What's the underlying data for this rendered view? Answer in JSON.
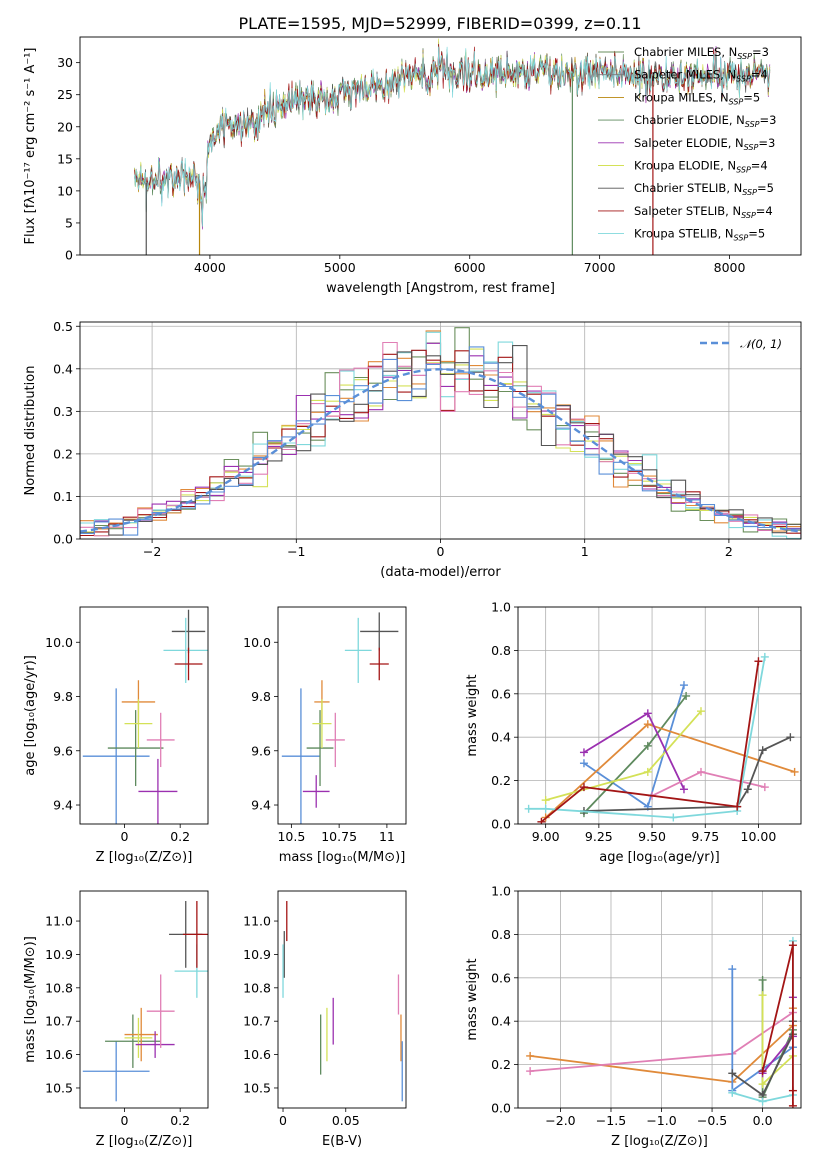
{
  "figure": {
    "title": "PLATE=1595, MJD=52999, FIBERID=0399, z=0.11"
  },
  "chart_data": [
    {
      "id": "spectrum",
      "type": "line",
      "xlabel": "wavelength [Angstrom, rest frame]",
      "ylabel": "Flux [fλ10⁻¹⁷ erg cm⁻² s⁻¹ A⁻¹]",
      "xlim": [
        3000,
        8550
      ],
      "ylim": [
        0,
        34
      ],
      "xticks": [
        4000,
        5000,
        6000,
        7000,
        8000
      ],
      "yticks": [
        0,
        5,
        10,
        15,
        20,
        25,
        30
      ],
      "grid": false,
      "legend_position": "right",
      "continuum_anchors": {
        "wavelength": [
          3420,
          3600,
          3700,
          3800,
          3900,
          3950,
          4000,
          4100,
          4300,
          4500,
          4700,
          5000,
          5300,
          5600,
          5900,
          6200,
          6500,
          6800,
          7100,
          7400,
          7700,
          8000,
          8300
        ],
        "flux": [
          11,
          11.5,
          12,
          12.5,
          12,
          10,
          18,
          20,
          20,
          23,
          24,
          25,
          27,
          28,
          28.5,
          28.5,
          28.5,
          28.5,
          28.5,
          27.5,
          28,
          28,
          28.5
        ]
      },
      "series": [
        {
          "name": "Chabrier MILES, N_SSP=3",
          "label_main": "Chabrier MILES, N",
          "label_sub": "SSP",
          "label_tail": "=3",
          "color": "#6a8f5c"
        },
        {
          "name": "Salpeter MILES, N_SSP=4",
          "label_main": "Salpeter MILES, N",
          "label_sub": "SSP",
          "label_tail": "=4",
          "color": "#7a7a7a"
        },
        {
          "name": "Kroupa MILES, N_SSP=5",
          "label_main": "Kroupa MILES, N",
          "label_sub": "SSP",
          "label_tail": "=5",
          "color": "#b8860b"
        },
        {
          "name": "Chabrier ELODIE, N_SSP=3",
          "label_main": "Chabrier ELODIE, N",
          "label_sub": "SSP",
          "label_tail": "=3",
          "color": "#5e8a5e"
        },
        {
          "name": "Salpeter ELODIE, N_SSP=3",
          "label_main": "Salpeter ELODIE, N",
          "label_sub": "SSP",
          "label_tail": "=3",
          "color": "#9b30b0"
        },
        {
          "name": "Kroupa ELODIE, N_SSP=4",
          "label_main": "Kroupa ELODIE, N",
          "label_sub": "SSP",
          "label_tail": "=4",
          "color": "#d4e157"
        },
        {
          "name": "Chabrier STELIB, N_SSP=5",
          "label_main": "Chabrier STELIB, N",
          "label_sub": "SSP",
          "label_tail": "=5",
          "color": "#555555"
        },
        {
          "name": "Salpeter STELIB, N_SSP=4",
          "label_main": "Salpeter STELIB, N",
          "label_sub": "SSP",
          "label_tail": "=4",
          "color": "#a31515"
        },
        {
          "name": "Kroupa STELIB, N_SSP=5",
          "label_main": "Kroupa STELIB, N",
          "label_sub": "SSP",
          "label_tail": "=5",
          "color": "#7fd8dc"
        }
      ]
    },
    {
      "id": "residuals",
      "type": "step-histogram",
      "xlabel": "(data-model)/error",
      "ylabel": "Normed distribution",
      "xlim": [
        -2.5,
        2.5
      ],
      "ylim": [
        0,
        0.51
      ],
      "xticks": [
        -2,
        -1,
        0,
        1,
        2
      ],
      "yticks": [
        0.0,
        0.1,
        0.2,
        0.3,
        0.4,
        0.5
      ],
      "grid": true,
      "legend_position": "top-right",
      "reference_curve": {
        "name": "N(0,1)",
        "label": "𝒩(0, 1)",
        "color": "#5a8fd8",
        "style": "dashed"
      },
      "series_colors": [
        "#6a8f5c",
        "#e08a3a",
        "#d4e157",
        "#9b30b0",
        "#7fd8dc",
        "#a31515",
        "#e07fb5",
        "#555555",
        "#5a8fd8"
      ]
    },
    {
      "id": "age_vs_Z",
      "type": "errorbar",
      "xlabel": "Z [log₁₀(Z/Z⊙)]",
      "ylabel": "age  [log₁₀(age/yr)]",
      "xlim": [
        -0.16,
        0.3
      ],
      "ylim": [
        9.33,
        10.13
      ],
      "xticks": [
        0.0,
        0.2
      ],
      "yticks": [
        9.4,
        9.6,
        9.8,
        10.0
      ],
      "points": [
        {
          "x": -0.03,
          "y": 9.58,
          "xerr": 0.12,
          "yerr": 0.25,
          "color": "#5a8fd8"
        },
        {
          "x": 0.04,
          "y": 9.61,
          "xerr": 0.1,
          "yerr": 0.14,
          "color": "#5e8a5e"
        },
        {
          "x": 0.05,
          "y": 9.78,
          "xerr": 0.06,
          "yerr": 0.08,
          "color": "#e08a3a"
        },
        {
          "x": 0.05,
          "y": 9.7,
          "xerr": 0.05,
          "yerr": 0.09,
          "color": "#d4e157"
        },
        {
          "x": 0.12,
          "y": 9.45,
          "xerr": 0.07,
          "yerr": 0.12,
          "color": "#9b30b0"
        },
        {
          "x": 0.13,
          "y": 9.64,
          "xerr": 0.05,
          "yerr": 0.1,
          "color": "#e07fb5"
        },
        {
          "x": 0.23,
          "y": 10.04,
          "xerr": 0.06,
          "yerr": 0.08,
          "color": "#555555"
        },
        {
          "x": 0.22,
          "y": 9.97,
          "xerr": 0.08,
          "yerr": 0.12,
          "color": "#7fd8dc"
        },
        {
          "x": 0.23,
          "y": 9.92,
          "xerr": 0.05,
          "yerr": 0.06,
          "color": "#a31515"
        }
      ]
    },
    {
      "id": "age_vs_mass",
      "type": "errorbar",
      "xlabel": "mass [log₁₀(M/M⊙)]",
      "ylabel": "",
      "xlim": [
        10.43,
        11.1
      ],
      "ylim": [
        9.33,
        10.13
      ],
      "xticks": [
        10.5,
        10.75,
        11.0
      ],
      "yticks": [
        9.4,
        9.6,
        9.8,
        10.0
      ],
      "points": [
        {
          "x": 10.55,
          "y": 9.58,
          "xerr": 0.1,
          "yerr": 0.25,
          "color": "#5a8fd8"
        },
        {
          "x": 10.65,
          "y": 9.61,
          "xerr": 0.07,
          "yerr": 0.14,
          "color": "#5e8a5e"
        },
        {
          "x": 10.66,
          "y": 9.78,
          "xerr": 0.04,
          "yerr": 0.08,
          "color": "#e08a3a"
        },
        {
          "x": 10.66,
          "y": 9.7,
          "xerr": 0.05,
          "yerr": 0.09,
          "color": "#d4e157"
        },
        {
          "x": 10.63,
          "y": 9.45,
          "xerr": 0.07,
          "yerr": 0.06,
          "color": "#9b30b0"
        },
        {
          "x": 10.73,
          "y": 9.64,
          "xerr": 0.05,
          "yerr": 0.1,
          "color": "#e07fb5"
        },
        {
          "x": 10.96,
          "y": 10.04,
          "xerr": 0.1,
          "yerr": 0.07,
          "color": "#555555"
        },
        {
          "x": 10.85,
          "y": 9.97,
          "xerr": 0.07,
          "yerr": 0.12,
          "color": "#7fd8dc"
        },
        {
          "x": 10.96,
          "y": 9.92,
          "xerr": 0.05,
          "yerr": 0.06,
          "color": "#a31515"
        }
      ]
    },
    {
      "id": "mass_weight_vs_age",
      "type": "line",
      "xlabel": "age  [log₁₀(age/yr)]",
      "ylabel": "mass weight",
      "xlim": [
        8.87,
        10.2
      ],
      "ylim": [
        0,
        1.0
      ],
      "xticks": [
        9.0,
        9.25,
        9.5,
        9.75,
        10.0
      ],
      "yticks": [
        0.0,
        0.2,
        0.4,
        0.6,
        0.8,
        1.0
      ],
      "grid": true,
      "series": [
        {
          "color": "#5a8fd8",
          "x": [
            9.18,
            9.48,
            9.65
          ],
          "y": [
            0.28,
            0.08,
            0.64
          ]
        },
        {
          "color": "#5e8a5e",
          "x": [
            9.18,
            9.48,
            9.66
          ],
          "y": [
            0.05,
            0.36,
            0.59
          ]
        },
        {
          "color": "#e08a3a",
          "x": [
            9.0,
            9.48,
            10.17
          ],
          "y": [
            0.03,
            0.46,
            0.24
          ]
        },
        {
          "color": "#d4e157",
          "x": [
            9.0,
            9.48,
            9.73
          ],
          "y": [
            0.11,
            0.24,
            0.52
          ]
        },
        {
          "color": "#9b30b0",
          "x": [
            9.18,
            9.48,
            9.65
          ],
          "y": [
            0.33,
            0.51,
            0.16
          ]
        },
        {
          "color": "#e07fb5",
          "x": [
            9.5,
            9.73,
            10.03
          ],
          "y": [
            0.13,
            0.24,
            0.17
          ]
        },
        {
          "color": "#555555",
          "x": [
            9.18,
            9.9,
            9.95,
            10.02,
            10.15
          ],
          "y": [
            0.06,
            0.08,
            0.16,
            0.34,
            0.4
          ]
        },
        {
          "color": "#7fd8dc",
          "x": [
            8.92,
            9.0,
            9.6,
            9.9,
            10.03
          ],
          "y": [
            0.07,
            0.07,
            0.03,
            0.06,
            0.77
          ]
        },
        {
          "color": "#a31515",
          "x": [
            8.98,
            9.18,
            9.9,
            10.0
          ],
          "y": [
            0.01,
            0.17,
            0.08,
            0.75
          ]
        }
      ]
    },
    {
      "id": "mass_vs_Z",
      "type": "errorbar",
      "xlabel": "Z [log₁₀(Z/Z⊙)]",
      "ylabel": "mass [log₁₀(M/M⊙)]",
      "xlim": [
        -0.16,
        0.3
      ],
      "ylim": [
        10.44,
        11.09
      ],
      "xticks": [
        0.0,
        0.2
      ],
      "yticks": [
        10.5,
        10.6,
        10.7,
        10.8,
        10.9,
        11.0
      ],
      "points": [
        {
          "x": -0.03,
          "y": 10.55,
          "xerr": 0.12,
          "yerr": 0.09,
          "color": "#5a8fd8"
        },
        {
          "x": 0.03,
          "y": 10.64,
          "xerr": 0.1,
          "yerr": 0.08,
          "color": "#5e8a5e"
        },
        {
          "x": 0.06,
          "y": 10.66,
          "xerr": 0.06,
          "yerr": 0.08,
          "color": "#e08a3a"
        },
        {
          "x": 0.05,
          "y": 10.65,
          "xerr": 0.05,
          "yerr": 0.06,
          "color": "#d4e157"
        },
        {
          "x": 0.11,
          "y": 10.63,
          "xerr": 0.07,
          "yerr": 0.04,
          "color": "#9b30b0"
        },
        {
          "x": 0.13,
          "y": 10.73,
          "xerr": 0.05,
          "yerr": 0.11,
          "color": "#e07fb5"
        },
        {
          "x": 0.22,
          "y": 10.96,
          "xerr": 0.06,
          "yerr": 0.1,
          "color": "#555555"
        },
        {
          "x": 0.26,
          "y": 10.85,
          "xerr": 0.08,
          "yerr": 0.08,
          "color": "#7fd8dc"
        },
        {
          "x": 0.26,
          "y": 10.96,
          "xerr": 0.05,
          "yerr": 0.1,
          "color": "#a31515"
        }
      ]
    },
    {
      "id": "mass_vs_ebv",
      "type": "errorbar",
      "xlabel": "E(B-V)",
      "ylabel": "",
      "xlim": [
        -0.004,
        0.098
      ],
      "ylim": [
        10.44,
        11.09
      ],
      "xticks": [
        0.0,
        0.05
      ],
      "yticks": [
        10.5,
        10.6,
        10.7,
        10.8,
        10.9,
        11.0
      ],
      "points": [
        {
          "x": 0.003,
          "y": 11.0,
          "xerr": 0,
          "yerr": 0.06,
          "color": "#a31515"
        },
        {
          "x": 0.001,
          "y": 10.9,
          "xerr": 0,
          "yerr": 0.07,
          "color": "#555555"
        },
        {
          "x": 0.0,
          "y": 10.85,
          "xerr": 0,
          "yerr": 0.08,
          "color": "#7fd8dc"
        },
        {
          "x": 0.03,
          "y": 10.63,
          "xerr": 0,
          "yerr": 0.09,
          "color": "#5e8a5e"
        },
        {
          "x": 0.035,
          "y": 10.66,
          "xerr": 0,
          "yerr": 0.08,
          "color": "#d4e157"
        },
        {
          "x": 0.04,
          "y": 10.7,
          "xerr": 0,
          "yerr": 0.07,
          "color": "#9b30b0"
        },
        {
          "x": 0.092,
          "y": 10.78,
          "xerr": 0,
          "yerr": 0.06,
          "color": "#e07fb5"
        },
        {
          "x": 0.094,
          "y": 10.65,
          "xerr": 0,
          "yerr": 0.07,
          "color": "#e08a3a"
        },
        {
          "x": 0.095,
          "y": 10.55,
          "xerr": 0,
          "yerr": 0.09,
          "color": "#5a8fd8"
        }
      ]
    },
    {
      "id": "mass_weight_vs_Z",
      "type": "line",
      "xlabel": "Z [log₁₀(Z/Z⊙)]",
      "ylabel": "mass weight",
      "xlim": [
        -2.42,
        0.38
      ],
      "ylim": [
        0,
        1.0
      ],
      "xticks": [
        -2.0,
        -1.5,
        -1.0,
        -0.5,
        0.0
      ],
      "yticks": [
        0.0,
        0.2,
        0.4,
        0.6,
        0.8,
        1.0
      ],
      "grid": true,
      "series": [
        {
          "color": "#e08a3a",
          "x": [
            -2.3,
            -0.3,
            0.3,
            0.3
          ],
          "y": [
            0.24,
            0.12,
            0.38,
            0.46
          ]
        },
        {
          "color": "#e07fb5",
          "x": [
            -2.3,
            -0.3,
            0.3
          ],
          "y": [
            0.17,
            0.25,
            0.44
          ]
        },
        {
          "color": "#5a8fd8",
          "x": [
            -0.3,
            -0.3,
            0.3
          ],
          "y": [
            0.64,
            0.08,
            0.28
          ]
        },
        {
          "color": "#5e8a5e",
          "x": [
            0.0,
            0.0,
            0.3
          ],
          "y": [
            0.59,
            0.05,
            0.36
          ]
        },
        {
          "color": "#d4e157",
          "x": [
            0.0,
            0.0,
            0.3
          ],
          "y": [
            0.52,
            0.11,
            0.24
          ]
        },
        {
          "color": "#9b30b0",
          "x": [
            0.0,
            0.3,
            0.3
          ],
          "y": [
            0.16,
            0.33,
            0.51
          ]
        },
        {
          "color": "#555555",
          "x": [
            -0.3,
            0.0,
            0.3,
            0.3
          ],
          "y": [
            0.16,
            0.06,
            0.34,
            0.4
          ]
        },
        {
          "color": "#7fd8dc",
          "x": [
            -0.3,
            0.0,
            0.3,
            0.3
          ],
          "y": [
            0.07,
            0.03,
            0.06,
            0.77
          ]
        },
        {
          "color": "#a31515",
          "x": [
            0.0,
            0.3,
            0.3,
            0.3
          ],
          "y": [
            0.17,
            0.75,
            0.08,
            0.01
          ]
        }
      ]
    }
  ]
}
